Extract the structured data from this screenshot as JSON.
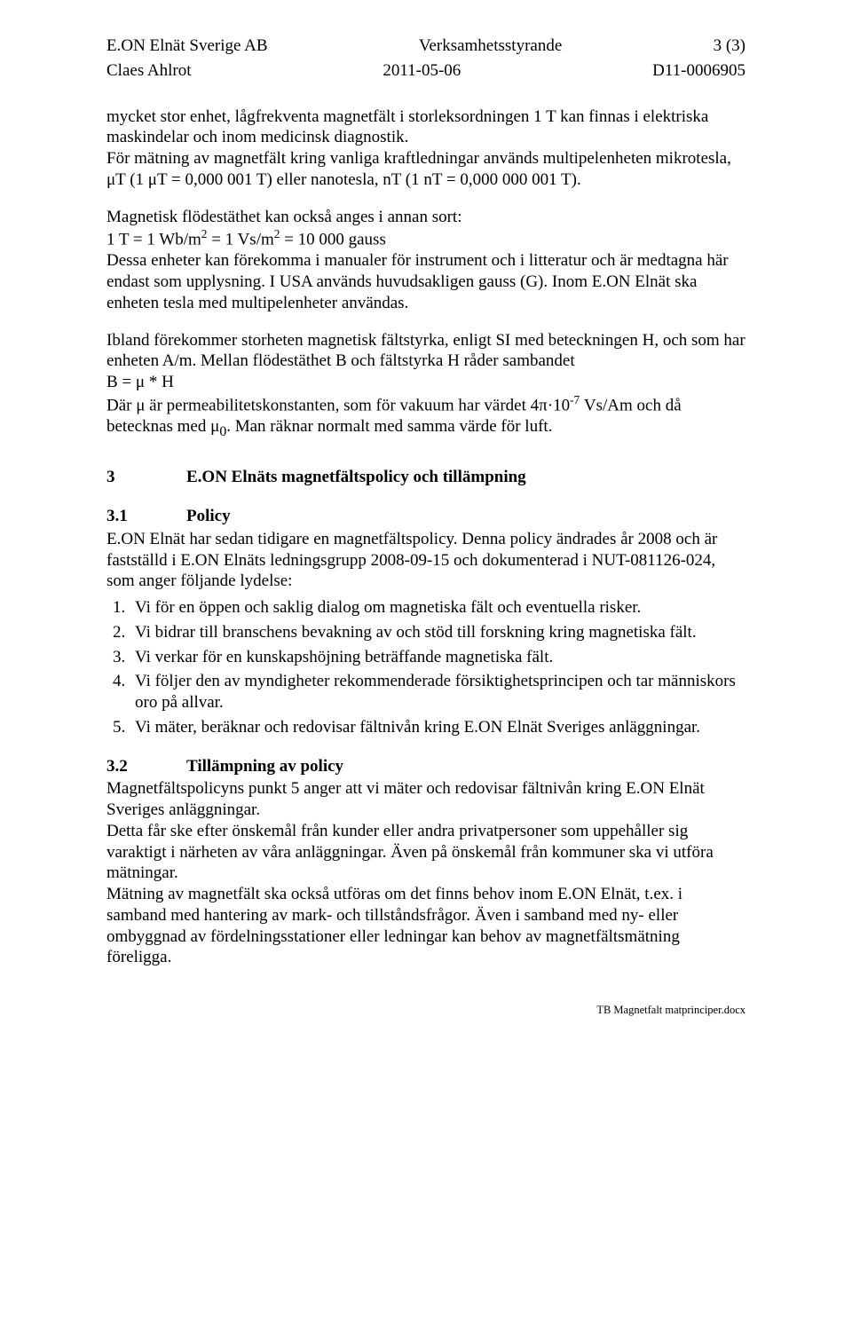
{
  "header": {
    "company": "E.ON Elnät Sverige AB",
    "doc_type": "Verksamhetsstyrande",
    "page": "3 (3)",
    "author": "Claes Ahlrot",
    "date": "2011-05-06",
    "doc_id": "D11-0006905"
  },
  "body": {
    "p1": "mycket stor enhet, lågfrekventa magnetfält i storleksordningen 1 T kan finnas i elektriska maskindelar och inom medicinsk diagnostik.",
    "p2": "För mätning av magnetfält kring vanliga kraftledningar används multipelenheten mikrotesla, μT (1 μT = 0,000 001 T) eller nanotesla, nT (1 nT = 0,000 000 001 T).",
    "p3a": "Magnetisk flödestäthet kan också anges i annan sort:",
    "p3b_pre": "1 T = 1 Wb/m",
    "p3b_mid": " = 1 Vs/m",
    "p3b_post": " = 10 000 gauss",
    "p3c": "Dessa enheter kan förekomma i manualer för instrument och i litteratur och är medtagna här endast som upplysning. I USA används huvudsakligen gauss (G). Inom E.ON Elnät ska enheten tesla med multipelenheter användas.",
    "p4": "Ibland förekommer storheten magnetisk fältstyrka, enligt SI med beteckningen H, och som har enheten A/m. Mellan flödestäthet B och fältstyrka H råder sambandet",
    "p4b": "B = μ * H",
    "p4c_pre": "Där μ är permeabilitetskonstanten, som för vakuum har värdet 4π·10",
    "p4c_exp": "-7",
    "p4c_post": " Vs/Am och då betecknas med μ",
    "p4c_sub": "0",
    "p4c_end": ". Man räknar normalt med samma värde för luft."
  },
  "sec3": {
    "num": "3",
    "title": "E.ON Elnäts magnetfältspolicy och tillämpning"
  },
  "sec31": {
    "num": "3.1",
    "title": "Policy",
    "intro": "E.ON Elnät har sedan tidigare en magnetfältspolicy. Denna policy ändrades år 2008 och är fastställd i E.ON Elnäts ledningsgrupp 2008-09-15 och dokumenterad i NUT-081126-024, som anger följande lydelse:",
    "items": [
      "Vi för en öppen och saklig dialog om magnetiska fält och eventuella risker.",
      "Vi bidrar till branschens bevakning av och stöd till forskning kring magnetiska fält.",
      "Vi verkar för en kunskapshöjning beträffande magnetiska fält.",
      "Vi följer den av myndigheter rekommenderade försiktighetsprincipen och tar människors oro på allvar.",
      "Vi mäter, beräknar och redovisar fältnivån kring E.ON Elnät Sveriges anläggningar."
    ]
  },
  "sec32": {
    "num": "3.2",
    "title": "Tillämpning av policy",
    "p1": "Magnetfältspolicyns punkt 5 anger att vi mäter och redovisar fältnivån kring E.ON Elnät Sveriges anläggningar.",
    "p2": "Detta får ske efter önskemål från kunder eller andra privatpersoner som uppehåller sig varaktigt i närheten av våra anläggningar. Även på önskemål från kommuner ska vi utföra mätningar.",
    "p3": "Mätning av magnetfält ska också utföras om det finns behov inom E.ON Elnät, t.ex. i samband med hantering av mark- och tillståndsfrågor. Även i samband med ny- eller ombyggnad av fördelningsstationer eller ledningar kan behov av magnetfältsmätning föreligga."
  },
  "footer": "TB Magnetfalt matprinciper.docx"
}
